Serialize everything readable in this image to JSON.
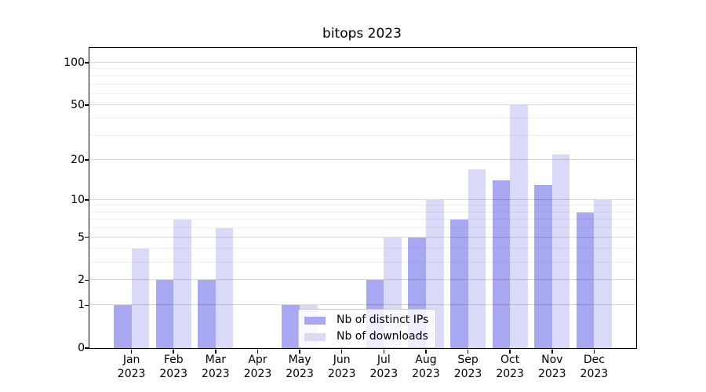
{
  "title": "bitops 2023",
  "chart_data": {
    "type": "bar",
    "title": "bitops 2023",
    "categories": [
      {
        "month": "Jan",
        "year": "2023"
      },
      {
        "month": "Feb",
        "year": "2023"
      },
      {
        "month": "Mar",
        "year": "2023"
      },
      {
        "month": "Apr",
        "year": "2023"
      },
      {
        "month": "May",
        "year": "2023"
      },
      {
        "month": "Jun",
        "year": "2023"
      },
      {
        "month": "Jul",
        "year": "2023"
      },
      {
        "month": "Aug",
        "year": "2023"
      },
      {
        "month": "Sep",
        "year": "2023"
      },
      {
        "month": "Oct",
        "year": "2023"
      },
      {
        "month": "Nov",
        "year": "2023"
      },
      {
        "month": "Dec",
        "year": "2023"
      }
    ],
    "series": [
      {
        "name": "Nb of distinct IPs",
        "color": "#a7a7f2",
        "values": [
          1,
          2,
          2,
          0,
          1,
          0,
          2,
          5,
          7,
          14,
          13,
          8
        ]
      },
      {
        "name": "Nb of downloads",
        "color": "#d9d9f8",
        "values": [
          4,
          7,
          6,
          0,
          1,
          0,
          5,
          10,
          17,
          50,
          22,
          10
        ]
      }
    ],
    "xlabel": "",
    "ylabel": "",
    "yscale": "log1p",
    "ylim": [
      0,
      127.5
    ],
    "yticks": [
      0,
      1,
      2,
      5,
      10,
      20,
      50,
      100
    ],
    "minor_gridlines": [
      3,
      4,
      6,
      7,
      8,
      9,
      30,
      40,
      60,
      70,
      80,
      90
    ],
    "grid": "on",
    "legend_position": "lower-center-left"
  }
}
